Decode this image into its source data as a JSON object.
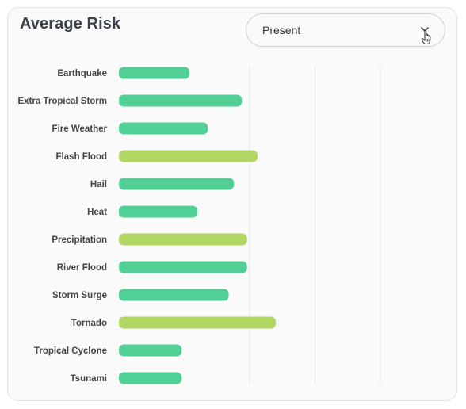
{
  "header": {
    "title": "Average Risk"
  },
  "dropdown": {
    "selected": "Present"
  },
  "colors": {
    "teal": "#52cf95",
    "lime": "#b2d663",
    "grid": "#e4e4e4"
  },
  "chart_data": {
    "type": "bar",
    "orientation": "horizontal",
    "grid": true,
    "categories": [
      "Earthquake",
      "Extra Tropical Storm",
      "Fire Weather",
      "Flash Flood",
      "Hail",
      "Heat",
      "Precipitation",
      "River Flood",
      "Storm Surge",
      "Tornado",
      "Tropical Cyclone",
      "Tsunami"
    ],
    "values": [
      27,
      47,
      34,
      53,
      44,
      30,
      49,
      49,
      42,
      60,
      24,
      24
    ],
    "bar_colors": [
      "teal",
      "teal",
      "teal",
      "lime",
      "teal",
      "teal",
      "lime",
      "teal",
      "teal",
      "lime",
      "teal",
      "teal"
    ],
    "xlim": [
      0,
      100
    ],
    "gridlines": [
      50,
      75,
      100
    ]
  }
}
